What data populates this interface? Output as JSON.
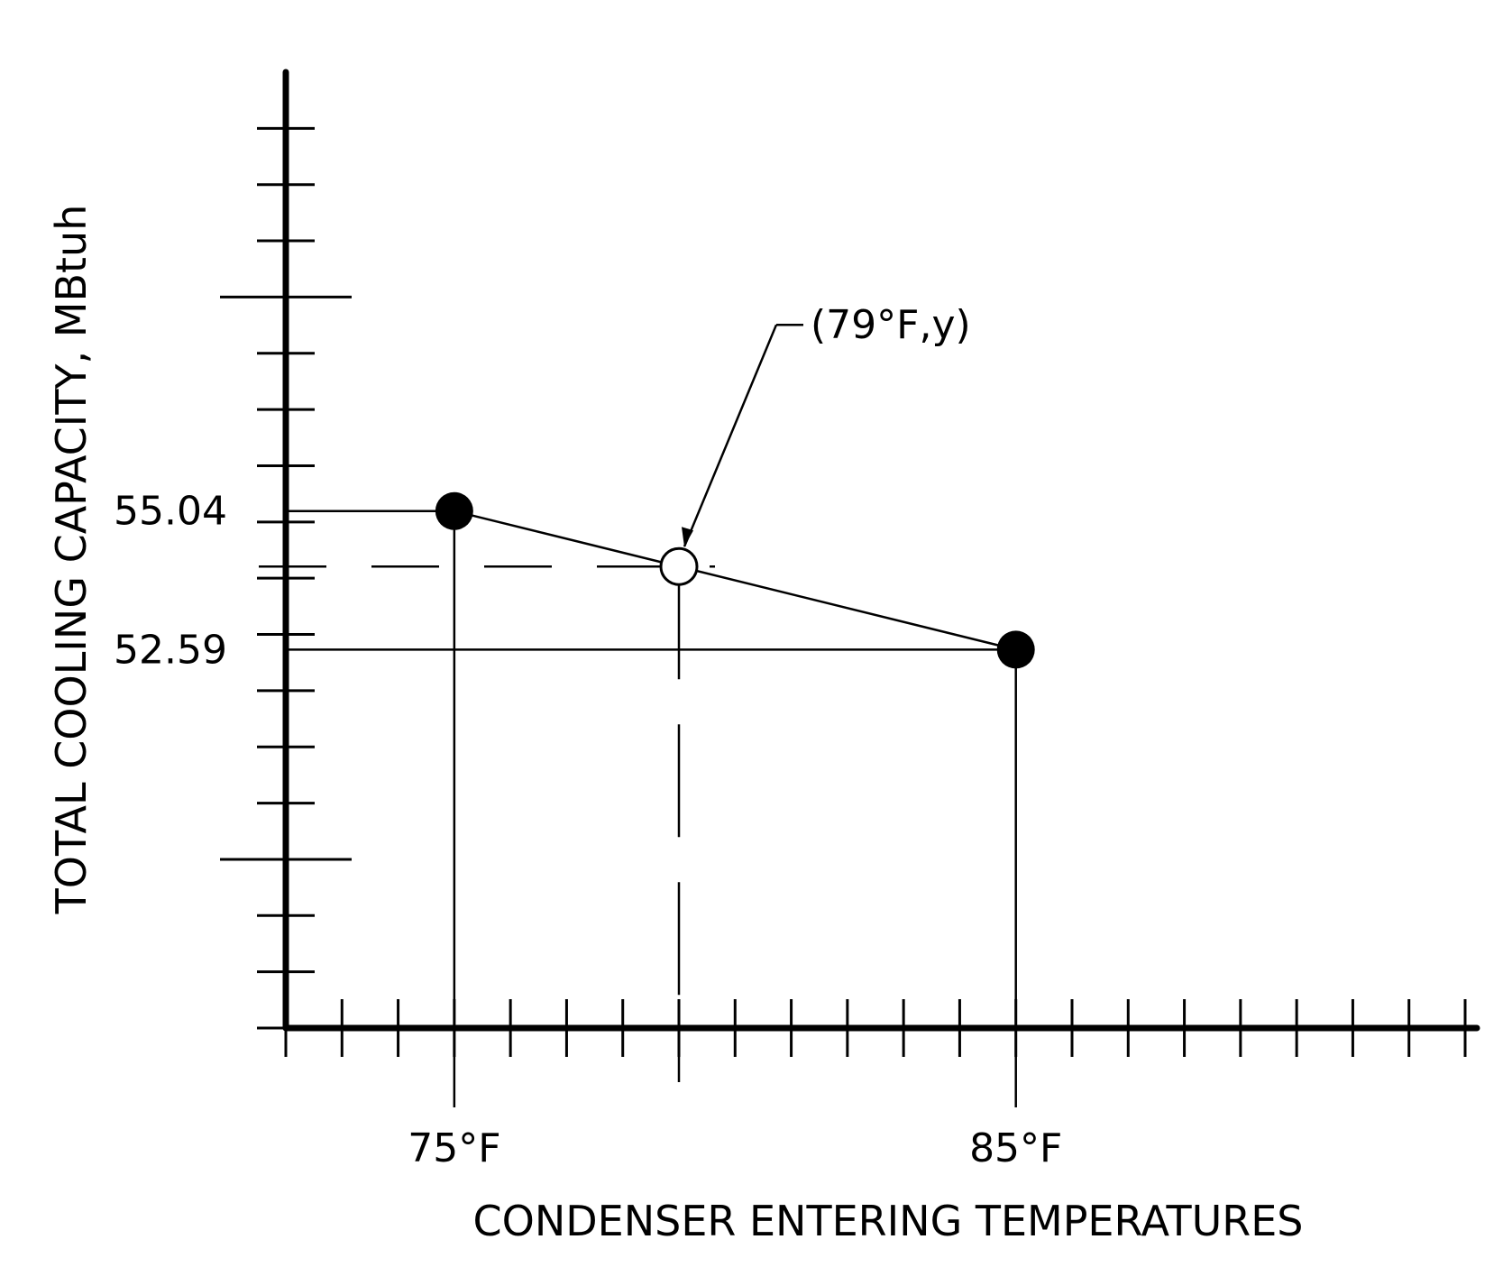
{
  "chart_data": {
    "type": "line",
    "title": "",
    "xlabel": "CONDENSER ENTERING TEMPERATURES",
    "ylabel": "TOTAL COOLING CAPACITY, MBtuh",
    "x_unit": "°F",
    "x_ticks": [
      {
        "value": 75,
        "label": "75°F"
      },
      {
        "value": 85,
        "label": "85°F"
      }
    ],
    "y_ticks": [
      {
        "value": 55.04,
        "label": "55.04"
      },
      {
        "value": 52.59,
        "label": "52.59"
      }
    ],
    "xlim": [
      72,
      93
    ],
    "ylim": [
      45.9,
      62.8
    ],
    "grid": false,
    "known_points": [
      {
        "x": 75,
        "y": 55.04
      },
      {
        "x": 85,
        "y": 52.59
      }
    ],
    "interpolated_point": {
      "x": 79,
      "y": 54.06,
      "label": "(79°F,y)"
    },
    "colors": {
      "ink": "#000000",
      "background": "#ffffff"
    }
  }
}
